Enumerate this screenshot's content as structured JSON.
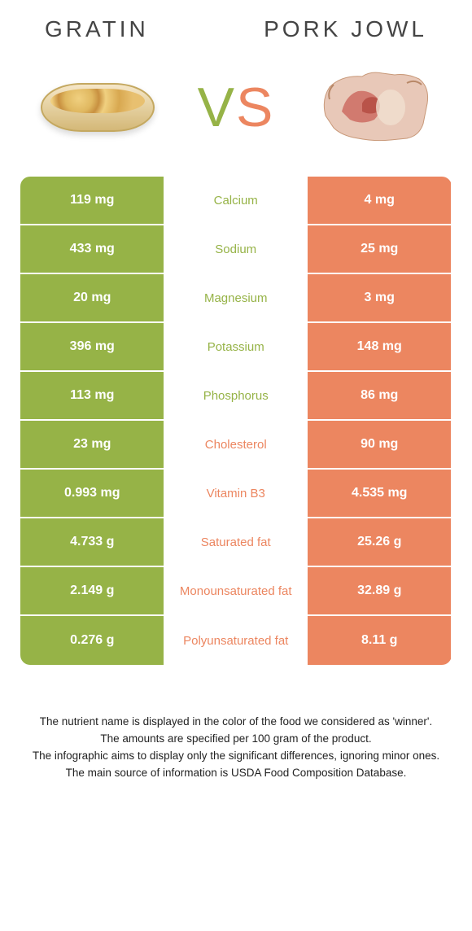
{
  "colors": {
    "green": "#96b347",
    "orange": "#ec8660",
    "green_text": "#96b347",
    "orange_text": "#ec8660"
  },
  "header": {
    "left": "Gratin",
    "right": "Pork jowl"
  },
  "vs": {
    "v": "V",
    "s": "S"
  },
  "rows": [
    {
      "left": "119 mg",
      "mid": "Calcium",
      "right": "4 mg",
      "winner": "left"
    },
    {
      "left": "433 mg",
      "mid": "Sodium",
      "right": "25 mg",
      "winner": "left"
    },
    {
      "left": "20 mg",
      "mid": "Magnesium",
      "right": "3 mg",
      "winner": "left"
    },
    {
      "left": "396 mg",
      "mid": "Potassium",
      "right": "148 mg",
      "winner": "left"
    },
    {
      "left": "113 mg",
      "mid": "Phosphorus",
      "right": "86 mg",
      "winner": "left"
    },
    {
      "left": "23 mg",
      "mid": "Cholesterol",
      "right": "90 mg",
      "winner": "right"
    },
    {
      "left": "0.993 mg",
      "mid": "Vitamin B3",
      "right": "4.535 mg",
      "winner": "right"
    },
    {
      "left": "4.733 g",
      "mid": "Saturated fat",
      "right": "25.26 g",
      "winner": "right"
    },
    {
      "left": "2.149 g",
      "mid": "Monounsaturated fat",
      "right": "32.89 g",
      "winner": "right"
    },
    {
      "left": "0.276 g",
      "mid": "Polyunsaturated fat",
      "right": "8.11 g",
      "winner": "right"
    }
  ],
  "footnotes": [
    "The nutrient name is displayed in the color of the food we considered as 'winner'.",
    "The amounts are specified per 100 gram of the product.",
    "The infographic aims to display only the significant differences, ignoring minor ones.",
    "The main source of information is USDA Food Composition Database."
  ]
}
